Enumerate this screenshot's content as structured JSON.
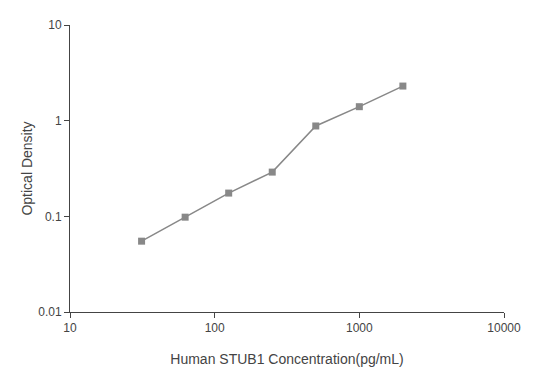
{
  "chart_data": {
    "type": "line",
    "x": [
      31.25,
      62.5,
      125,
      250,
      500,
      1000,
      2000
    ],
    "values": [
      0.055,
      0.098,
      0.175,
      0.29,
      0.88,
      1.4,
      2.3
    ],
    "xlabel": "Human STUB1 Concentration(pg/mL)",
    "ylabel": "Optical Density",
    "xlim": [
      10,
      10000
    ],
    "ylim": [
      0.01,
      10
    ],
    "xticks": [
      10,
      100,
      1000,
      10000
    ],
    "yticks": [
      0.01,
      0.1,
      1,
      10
    ],
    "log": true,
    "grid": false,
    "color": "#888888",
    "marker": "square",
    "line_style": "solid"
  }
}
